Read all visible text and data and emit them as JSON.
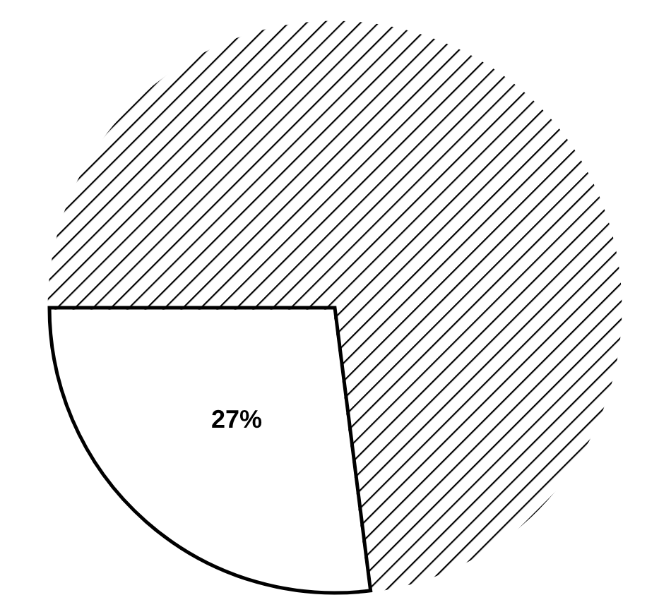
{
  "chart_data": {
    "type": "pie",
    "categories": [
      null,
      null
    ],
    "values": [
      27,
      73
    ],
    "colors": [
      "#ffffff",
      "#000000"
    ],
    "value_labels": [
      "27%",
      null
    ]
  }
}
